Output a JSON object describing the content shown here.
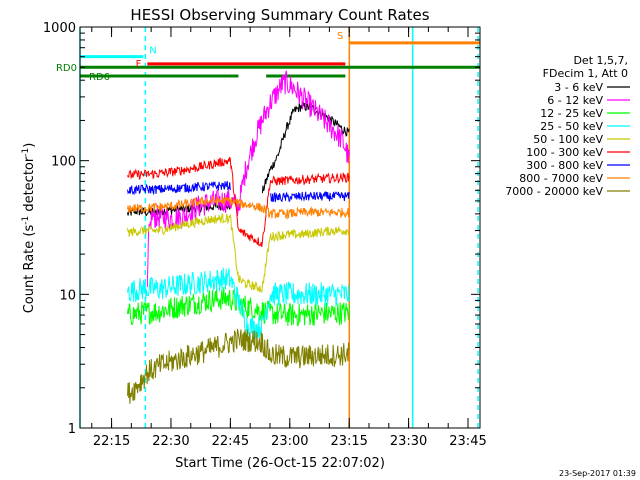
{
  "chart_data": {
    "type": "line",
    "title": "HESSI Observing Summary Count Rates",
    "xlabel": "Start Time (26-Oct-15 22:07:02)",
    "ylabel_main": "Count Rate (s",
    "ylabel_exp1": "-1",
    "ylabel_mid": " detector",
    "ylabel_exp2": "-1",
    "ylabel_end": ")",
    "y_scale": "log",
    "ylim": [
      1,
      1000
    ],
    "xlim_minutes": [
      0,
      101
    ],
    "x_ticks": [
      {
        "label": "22:15",
        "min": 7.97
      },
      {
        "label": "22:30",
        "min": 22.97
      },
      {
        "label": "22:45",
        "min": 37.97
      },
      {
        "label": "23:00",
        "min": 52.97
      },
      {
        "label": "23:15",
        "min": 67.97
      },
      {
        "label": "23:30",
        "min": 82.97
      },
      {
        "label": "23:45",
        "min": 97.97
      }
    ],
    "y_ticks": [
      {
        "label": "1",
        "value": 1
      },
      {
        "label": "10",
        "value": 10
      },
      {
        "label": "100",
        "value": 100
      },
      {
        "label": "1000",
        "value": 1000
      }
    ],
    "legend_header": [
      "Det 1,5,7,",
      "FDecim 1, Att 0"
    ],
    "series": [
      {
        "name": "3 - 6 keV",
        "color": "#000000",
        "points": [
          [
            12,
            40
          ],
          [
            14,
            42
          ],
          [
            17,
            41
          ],
          [
            20,
            42
          ],
          [
            24,
            43
          ],
          [
            28,
            44
          ],
          [
            32,
            45
          ],
          [
            36,
            46
          ],
          [
            38,
            46
          ],
          [
            46,
            58
          ],
          [
            48,
            85
          ],
          [
            50,
            110
          ],
          [
            52,
            170
          ],
          [
            54,
            235
          ],
          [
            56,
            255
          ],
          [
            58,
            250
          ],
          [
            60,
            235
          ],
          [
            62,
            215
          ],
          [
            64,
            195
          ],
          [
            66,
            175
          ],
          [
            68,
            160
          ]
        ]
      },
      {
        "name": "6 - 12 keV",
        "color": "#ff00ff",
        "points": [
          [
            17,
            10
          ],
          [
            17.3,
            25
          ],
          [
            18,
            38
          ],
          [
            20,
            38
          ],
          [
            23,
            37
          ],
          [
            26,
            38
          ],
          [
            29,
            44
          ],
          [
            32,
            48
          ],
          [
            35,
            50
          ],
          [
            38,
            50
          ],
          [
            40,
            45
          ],
          [
            42,
            90
          ],
          [
            44,
            140
          ],
          [
            46,
            200
          ],
          [
            48,
            270
          ],
          [
            50,
            330
          ],
          [
            51,
            370
          ],
          [
            52,
            385
          ],
          [
            54,
            350
          ],
          [
            56,
            300
          ],
          [
            58,
            260
          ],
          [
            60,
            225
          ],
          [
            62,
            195
          ],
          [
            64,
            170
          ],
          [
            66,
            145
          ],
          [
            67,
            125
          ],
          [
            68,
            100
          ]
        ]
      },
      {
        "name": "12 - 25 keV",
        "color": "#00ff00",
        "points": [
          [
            12,
            7
          ],
          [
            16,
            7.3
          ],
          [
            20,
            7.5
          ],
          [
            24,
            8
          ],
          [
            28,
            8.5
          ],
          [
            32,
            9
          ],
          [
            36,
            9.3
          ],
          [
            38,
            9.3
          ],
          [
            40,
            8.5
          ],
          [
            44,
            7.8
          ],
          [
            48,
            7.2
          ],
          [
            52,
            7.0
          ],
          [
            56,
            7.0
          ],
          [
            60,
            7.2
          ],
          [
            64,
            7.2
          ],
          [
            68,
            7.3
          ]
        ]
      },
      {
        "name": "25 - 50 keV",
        "color": "#00ffff",
        "points": [
          [
            12,
            10.5
          ],
          [
            16,
            11
          ],
          [
            20,
            11
          ],
          [
            24,
            11.5
          ],
          [
            28,
            12
          ],
          [
            32,
            12.5
          ],
          [
            36,
            13
          ],
          [
            38,
            13
          ],
          [
            40,
            9
          ],
          [
            42,
            6
          ],
          [
            44,
            5.6
          ],
          [
            46,
            5.8
          ],
          [
            48,
            10
          ],
          [
            52,
            10
          ],
          [
            56,
            10
          ],
          [
            60,
            10
          ],
          [
            64,
            10
          ],
          [
            68,
            10
          ]
        ]
      },
      {
        "name": "50 - 100 keV",
        "color": "#c8c800",
        "points": [
          [
            12,
            29
          ],
          [
            16,
            30
          ],
          [
            20,
            30
          ],
          [
            24,
            32
          ],
          [
            28,
            34
          ],
          [
            32,
            36
          ],
          [
            36,
            37
          ],
          [
            38,
            37
          ],
          [
            40,
            13
          ],
          [
            42,
            12
          ],
          [
            44,
            11.5
          ],
          [
            46,
            11
          ],
          [
            48,
            27
          ],
          [
            52,
            28
          ],
          [
            56,
            28
          ],
          [
            60,
            29
          ],
          [
            64,
            30
          ],
          [
            68,
            30
          ]
        ]
      },
      {
        "name": "100 - 300 keV",
        "color": "#ff0000",
        "points": [
          [
            12,
            78
          ],
          [
            16,
            79
          ],
          [
            20,
            80
          ],
          [
            24,
            83
          ],
          [
            28,
            87
          ],
          [
            32,
            92
          ],
          [
            36,
            98
          ],
          [
            38,
            100
          ],
          [
            40,
            30
          ],
          [
            42,
            28
          ],
          [
            44,
            26
          ],
          [
            46,
            24
          ],
          [
            48,
            70
          ],
          [
            52,
            71
          ],
          [
            56,
            72
          ],
          [
            60,
            73
          ],
          [
            64,
            74
          ],
          [
            68,
            75
          ]
        ]
      },
      {
        "name": "300 - 800 keV",
        "color": "#0000ff",
        "points": [
          [
            12,
            60
          ],
          [
            16,
            61
          ],
          [
            20,
            61
          ],
          [
            24,
            62
          ],
          [
            28,
            63
          ],
          [
            32,
            64
          ],
          [
            36,
            65
          ],
          [
            38,
            65
          ],
          [
            48,
            53
          ],
          [
            52,
            53
          ],
          [
            56,
            54
          ],
          [
            60,
            54
          ],
          [
            64,
            54
          ],
          [
            68,
            54
          ]
        ]
      },
      {
        "name": "800 - 7000 keV",
        "color": "#ff8000",
        "points": [
          [
            12,
            44
          ],
          [
            16,
            44
          ],
          [
            20,
            45
          ],
          [
            24,
            46
          ],
          [
            28,
            48
          ],
          [
            32,
            50
          ],
          [
            36,
            50
          ],
          [
            38,
            50
          ],
          [
            40,
            48
          ],
          [
            44,
            46
          ],
          [
            46,
            44
          ],
          [
            48,
            40
          ],
          [
            52,
            40
          ],
          [
            56,
            41
          ],
          [
            60,
            41
          ],
          [
            64,
            41
          ],
          [
            68,
            41
          ]
        ]
      },
      {
        "name": "7000 - 20000 keV",
        "color": "#808000",
        "points": [
          [
            12,
            1.8
          ],
          [
            14,
            2.0
          ],
          [
            17,
            2.6
          ],
          [
            20,
            2.9
          ],
          [
            24,
            3.2
          ],
          [
            28,
            3.5
          ],
          [
            32,
            3.8
          ],
          [
            36,
            4.2
          ],
          [
            38,
            4.4
          ],
          [
            40,
            4.6
          ],
          [
            44,
            4.5
          ],
          [
            46,
            4.4
          ],
          [
            48,
            3.5
          ],
          [
            52,
            3.4
          ],
          [
            56,
            3.4
          ],
          [
            60,
            3.5
          ],
          [
            64,
            3.5
          ],
          [
            68,
            3.6
          ]
        ]
      }
    ],
    "state_bars": [
      {
        "label": "N",
        "color": "#00ffff",
        "y": 600,
        "segments": [
          [
            0,
            16
          ]
        ]
      },
      {
        "label": "F",
        "color": "#ff0000",
        "y": 530,
        "segments": [
          [
            17,
            67
          ]
        ]
      },
      {
        "label": "S",
        "color": "#ff8000",
        "y": 760,
        "segments": [
          [
            68,
            101
          ]
        ]
      },
      {
        "label": "RD0",
        "color": "#008000",
        "y": 500,
        "segments": [
          [
            0,
            101
          ]
        ]
      },
      {
        "label": "RD6",
        "color": "#008000",
        "y": 430,
        "segments": [
          [
            0,
            40
          ],
          [
            47,
            67
          ]
        ]
      }
    ],
    "vertical_lines": [
      {
        "min": 0,
        "color": "#00ffff",
        "style": "solid"
      },
      {
        "min": 16.5,
        "color": "#00ffff",
        "style": "dash"
      },
      {
        "min": 68,
        "color": "#ff8000",
        "style": "solid"
      },
      {
        "min": 84,
        "color": "#00ffff",
        "style": "solid"
      },
      {
        "min": 100.5,
        "color": "#00ffff",
        "style": "dash"
      }
    ],
    "timestamp": "23-Sep-2017 01:39"
  }
}
